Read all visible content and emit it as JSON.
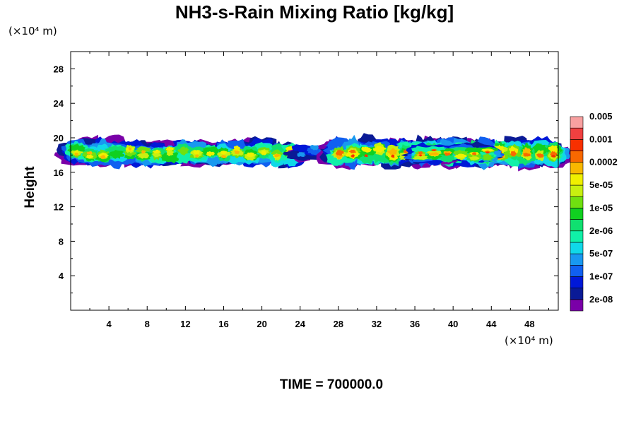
{
  "chart_data": {
    "type": "heatmap",
    "title": "NH3-s-Rain Mixing Ratio [kg/kg]",
    "xlabel": "",
    "ylabel": "Height",
    "x_units": "(×10⁴ m)",
    "y_units": "(×10⁴ m)",
    "xlim": [
      0,
      51
    ],
    "ylim": [
      0,
      30
    ],
    "xticks": [
      4,
      8,
      12,
      16,
      20,
      24,
      28,
      32,
      36,
      40,
      44,
      48
    ],
    "yticks": [
      4,
      8,
      12,
      16,
      20,
      24,
      28
    ],
    "xtick_labels": [
      "4",
      "8",
      "12",
      "16",
      "20",
      "24",
      "28",
      "32",
      "36",
      "40",
      "44",
      "48"
    ],
    "ytick_labels": [
      "4",
      "8",
      "12",
      "16",
      "20",
      "24",
      "28"
    ],
    "colorbar": {
      "colors": [
        "#7a00a8",
        "#0a1a96",
        "#0018d8",
        "#1060f0",
        "#1898f0",
        "#10d8e8",
        "#10f0a8",
        "#10e070",
        "#10d020",
        "#70e010",
        "#c8f010",
        "#f0f000",
        "#f8b800",
        "#f86800",
        "#f83000",
        "#f04040",
        "#f8a0a0"
      ],
      "labels": [
        "2e-08",
        "1e-07",
        "5e-07",
        "2e-06",
        "1e-05",
        "5e-05",
        "0.0002",
        "0.001",
        "0.005"
      ]
    },
    "cloud_regions": [
      {
        "x": [
          0,
          23.5
        ],
        "y": [
          16.5,
          20
        ],
        "max_level": 12
      },
      {
        "x": [
          23.5,
          27
        ],
        "y": [
          17.5,
          19.5
        ],
        "max_level": 4
      },
      {
        "x": [
          27.5,
          51
        ],
        "y": [
          16.3,
          20.2
        ],
        "max_level": 14
      },
      {
        "x": [
          36,
          44
        ],
        "y": [
          17,
          19.2
        ],
        "max_level": 14
      }
    ],
    "time_label": "TIME = 700000.0"
  },
  "colors": {
    "axis": "#000000",
    "background": "#ffffff"
  }
}
